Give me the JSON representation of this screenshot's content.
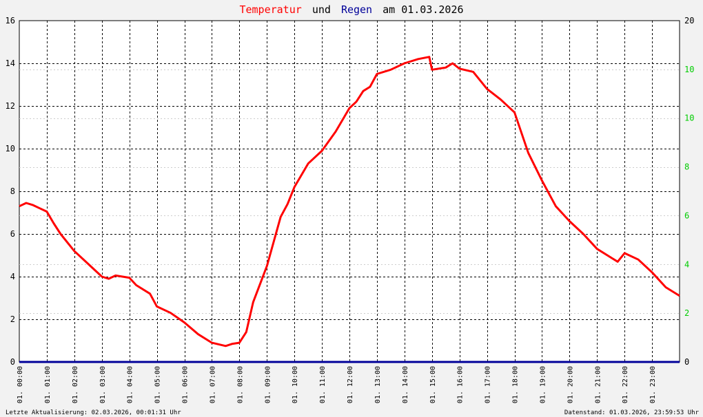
{
  "title": {
    "part1": "Temperatur",
    "part2": "und",
    "part3": "Regen",
    "part4": "am 01.03.2026"
  },
  "footer": {
    "left": "Letzte Aktualisierung: 02.03.2026, 00:01:31 Uhr",
    "right": "Datenstand: 01.03.2026, 23:59:53 Uhr"
  },
  "colors": {
    "temperature": "#ff0000",
    "rain": "#000099",
    "right_axis": "#00cc00",
    "grid": "#000000"
  },
  "chart_data": {
    "type": "line",
    "grid": true,
    "x_ticks": [
      "01. 00:00",
      "01. 01:00",
      "01. 02:00",
      "01. 03:00",
      "01. 04:00",
      "01. 05:00",
      "01. 06:00",
      "01. 07:00",
      "01. 08:00",
      "01. 09:00",
      "01. 10:00",
      "01. 11:00",
      "01. 12:00",
      "01. 13:00",
      "01. 14:00",
      "01. 15:00",
      "01. 16:00",
      "01. 17:00",
      "01. 18:00",
      "01. 19:00",
      "01. 20:00",
      "01. 21:00",
      "01. 22:00",
      "01. 23:00"
    ],
    "x_range_hours": [
      0,
      24
    ],
    "y_left": {
      "ylim": [
        0,
        16
      ],
      "ticks": [
        "0",
        "2",
        "4",
        "6",
        "8",
        "10",
        "12",
        "14",
        "16"
      ]
    },
    "y_right": {
      "ylim": [
        0,
        20
      ],
      "ticks": [
        "0",
        "2",
        "4",
        "6",
        "8",
        "10",
        "10",
        "20"
      ]
    },
    "series": [
      {
        "name": "Temperatur",
        "axis": "left",
        "x_hours": [
          0,
          0.25,
          0.5,
          0.75,
          1,
          1.25,
          1.5,
          2,
          2.5,
          3,
          3.25,
          3.5,
          4,
          4.25,
          4.75,
          5,
          5.5,
          6,
          6.5,
          7,
          7.5,
          7.75,
          8,
          8.25,
          8.5,
          9,
          9.5,
          9.75,
          10,
          10.5,
          11,
          11.5,
          12,
          12.25,
          12.5,
          12.75,
          13,
          13.5,
          14,
          14.5,
          14.9,
          15,
          15.5,
          15.75,
          16,
          16.5,
          17,
          17.5,
          18,
          18.5,
          19,
          19.5,
          20,
          20.5,
          21,
          21.5,
          21.75,
          22,
          22.5,
          23,
          23.5,
          24
        ],
        "values": [
          7.3,
          7.45,
          7.35,
          7.2,
          7.05,
          6.5,
          6.0,
          5.2,
          4.6,
          4.0,
          3.9,
          4.05,
          3.95,
          3.6,
          3.2,
          2.6,
          2.3,
          1.85,
          1.3,
          0.9,
          0.75,
          0.85,
          0.9,
          1.4,
          2.8,
          4.5,
          6.8,
          7.4,
          8.2,
          9.3,
          9.9,
          10.8,
          11.9,
          12.2,
          12.7,
          12.9,
          13.5,
          13.7,
          14.0,
          14.2,
          14.3,
          13.7,
          13.8,
          14.0,
          13.75,
          13.6,
          12.8,
          12.3,
          11.7,
          9.8,
          8.5,
          7.3,
          6.6,
          6.0,
          5.3,
          4.9,
          4.7,
          5.1,
          4.8,
          4.2,
          3.5,
          3.1
        ]
      },
      {
        "name": "Regen",
        "axis": "right",
        "x_hours": [
          0,
          24
        ],
        "values": [
          0,
          0
        ]
      }
    ]
  }
}
